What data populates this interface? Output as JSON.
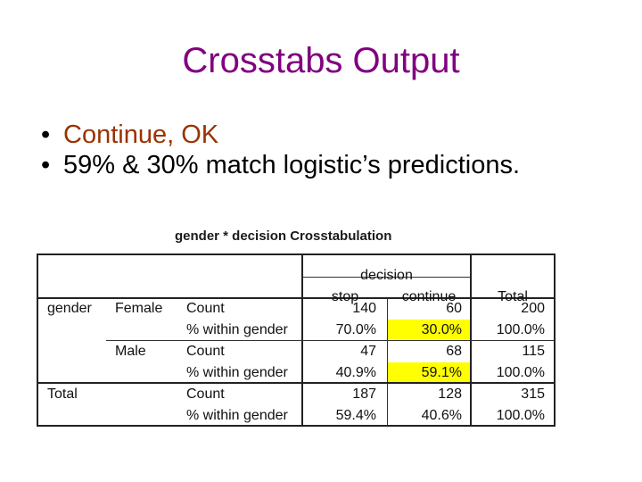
{
  "slide": {
    "title": "Crosstabs Output",
    "bullets": [
      "Continue, OK",
      "59% & 30% match logistic’s predictions."
    ]
  },
  "table": {
    "caption": "gender * decision Crosstabulation",
    "header": {
      "group": "decision",
      "stop": "stop",
      "continue": "continue",
      "total": "Total"
    },
    "row_var": "gender",
    "groups": [
      {
        "label": "Female",
        "rows": [
          {
            "stat": "Count",
            "stop": "140",
            "continue": "60",
            "total": "200"
          },
          {
            "stat": "% within gender",
            "stop": "70.0%",
            "continue": "30.0%",
            "total": "100.0%"
          }
        ]
      },
      {
        "label": "Male",
        "rows": [
          {
            "stat": "Count",
            "stop": "47",
            "continue": "68",
            "total": "115"
          },
          {
            "stat": "% within gender",
            "stop": "40.9%",
            "continue": "59.1%",
            "total": "100.0%"
          }
        ]
      },
      {
        "label": "Total",
        "rows": [
          {
            "stat": "Count",
            "stop": "187",
            "continue": "128",
            "total": "315"
          },
          {
            "stat": "% within gender",
            "stop": "59.4%",
            "continue": "40.6%",
            "total": "100.0%"
          }
        ]
      }
    ],
    "highlight_color": "#ffff00"
  }
}
